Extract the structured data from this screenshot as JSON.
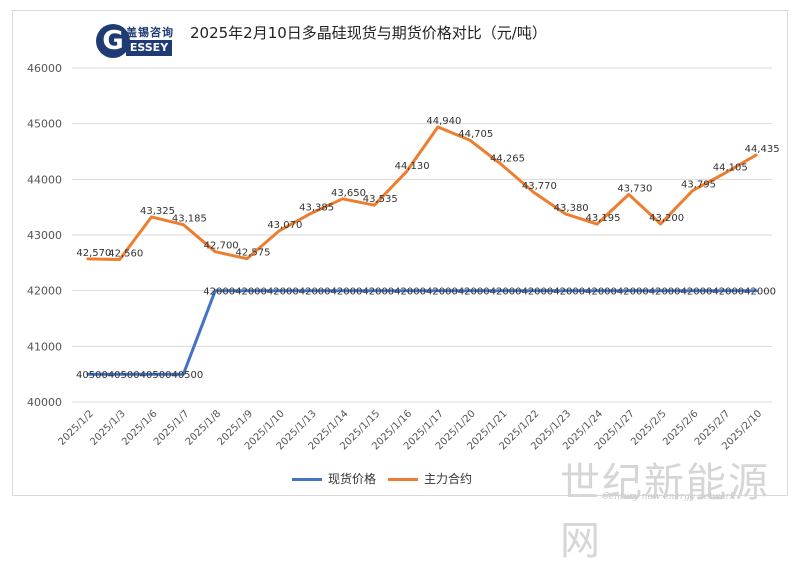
{
  "logo": {
    "letter": "G",
    "cn_text": "盖锡咨询",
    "en_text": "ESSEY"
  },
  "title": "2025年2月10日多晶硅现货与期货价格对比（元/吨）",
  "watermark": {
    "cn_text": "世纪新能源网",
    "en_text": "Century new energy network"
  },
  "colors": {
    "spot": "#4472c4",
    "futures": "#ed7d31",
    "grid": "#d9d9d9",
    "axis_text": "#555555"
  },
  "chart_data": {
    "type": "line",
    "title": "2025年2月10日多晶硅现货与期货价格对比（元/吨）",
    "xlabel": "",
    "ylabel": "",
    "ylim": [
      40000,
      46000
    ],
    "yticks": [
      "40000",
      "41000",
      "42000",
      "43000",
      "44000",
      "45000",
      "46000"
    ],
    "grid": "horizontal",
    "legend_position": "bottom",
    "categories": [
      "2025/1/2",
      "2025/1/3",
      "2025/1/6",
      "2025/1/7",
      "2025/1/8",
      "2025/1/9",
      "2025/1/10",
      "2025/1/13",
      "2025/1/14",
      "2025/1/15",
      "2025/1/16",
      "2025/1/17",
      "2025/1/20",
      "2025/1/21",
      "2025/1/22",
      "2025/1/23",
      "2025/1/24",
      "2025/1/27",
      "2025/2/5",
      "2025/2/6",
      "2025/2/7",
      "2025/2/10"
    ],
    "series": [
      {
        "name": "现货价格",
        "color": "#4472c4",
        "values": [
          40500,
          40500,
          40500,
          40500,
          42000,
          42000,
          42000,
          42000,
          42000,
          42000,
          42000,
          42000,
          42000,
          42000,
          42000,
          42000,
          42000,
          42000,
          42000,
          42000,
          42000,
          42000
        ],
        "labels": [
          "40500",
          "40500",
          "40500",
          "40500",
          "42000",
          "42000",
          "42000",
          "42000",
          "42000",
          "42000",
          "42000",
          "42000",
          "42000",
          "42000",
          "42000",
          "42000",
          "42000",
          "42000",
          "42000",
          "42000",
          "42000",
          "42000"
        ]
      },
      {
        "name": "主力合约",
        "color": "#ed7d31",
        "values": [
          42570,
          42560,
          43325,
          43185,
          42700,
          42575,
          43070,
          43385,
          43650,
          43535,
          44130,
          44940,
          44705,
          44265,
          43770,
          43380,
          43195,
          43730,
          43200,
          43795,
          44105,
          44435
        ],
        "labels": [
          "42,570",
          "42,560",
          "43,325",
          "43,185",
          "42,700",
          "42,575",
          "43,070",
          "43,385",
          "43,650",
          "43,535",
          "44,130",
          "44,940",
          "44,705",
          "44,265",
          "43,770",
          "43,380",
          "43,195",
          "43,730",
          "43,200",
          "43,795",
          "44,105",
          "44,435"
        ]
      }
    ]
  }
}
